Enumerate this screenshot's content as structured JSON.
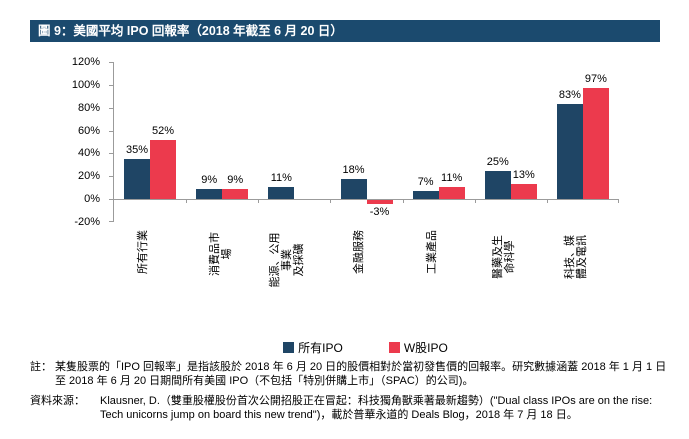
{
  "title": "圖 9：美國平均 IPO 回報率（2018 年截至 6 月 20 日）",
  "colors": {
    "banner_bg": "#1B4A6E",
    "banner_text": "#FFFFFF",
    "axis": "#9B9B9B",
    "all_ipo_blue": "#1F4565",
    "w_ipo_red": "#EC3A4D"
  },
  "chart_data": {
    "type": "bar",
    "title": "美國平均 IPO 回報率（2018 年截至 6 月 20 日）",
    "categories": [
      "所有行業",
      "消費品市場",
      "能源、公用事業\n及採礦",
      "金融服務",
      "工業產品",
      "醫藥及生命科學",
      "科技、媒體及電訊"
    ],
    "series": [
      {
        "name": "所有IPO",
        "color": "#1F4565",
        "values": [
          35,
          9,
          11,
          18,
          7,
          25,
          83
        ]
      },
      {
        "name": "W股IPO",
        "color": "#EC3A4D",
        "values": [
          52,
          9,
          null,
          -3,
          11,
          13,
          97
        ]
      }
    ],
    "xlabel": "",
    "ylabel": "",
    "ylim": [
      -20,
      120
    ],
    "yticks": [
      120,
      100,
      80,
      60,
      40,
      20,
      0,
      -20
    ],
    "ytick_labels": [
      "120%",
      "100%",
      "80%",
      "60%",
      "40%",
      "20%",
      "0%",
      "-20%"
    ],
    "value_label_suffix": "%",
    "grid": false,
    "legend_position": "bottom"
  },
  "notes": {
    "note_label": "註：",
    "note_text": "某隻股票的「IPO 回報率」是指該股於 2018 年 6 月 20 日的股價相對於當初發售價的回報率。研究數據涵蓋 2018 年 1 月 1 日至 2018 年 6 月 20 日期間所有美國 IPO（不包括「特別併購上市」（SPAC）的公司)。",
    "source_label": "資料來源：",
    "source_text": "Klausner, D.（雙重股權股份首次公開招股正在冒起：科技獨角獸乘著最新趨勢）(\"Dual class IPOs are on the rise: Tech unicorns jump on board this new trend\")，載於普華永道的 Deals Blog，2018 年 7 月 18 日。"
  }
}
